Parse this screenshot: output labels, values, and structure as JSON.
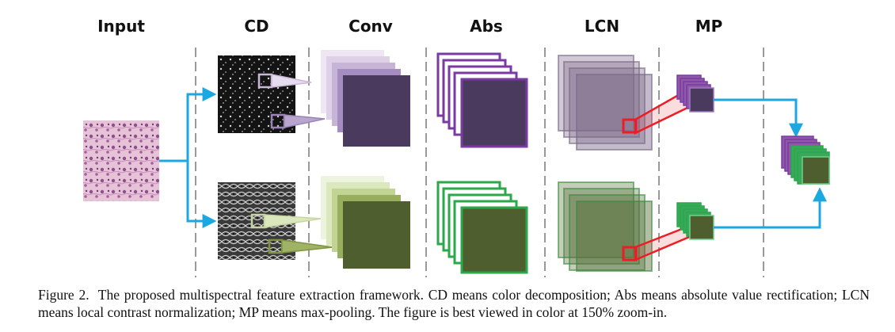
{
  "headers": {
    "input": "Input",
    "cd": "CD",
    "conv": "Conv",
    "abs": "Abs",
    "lcn": "LCN",
    "mp": "MP"
  },
  "colors": {
    "purple_dark": "#4a3a5e",
    "purple_frame": "#7a3aa3",
    "green_dark": "#4e5e2e",
    "green_frame": "#2aa84a",
    "arrow_blue": "#1aa8e0",
    "red_box": "#ee1c24",
    "divider": "#999999"
  },
  "caption": {
    "label": "Figure 2.",
    "text": "The proposed multispectral feature extraction framework. CD means color decomposition; Abs means absolute value rectification; LCN means local contrast normalization; MP means max-pooling. The figure is best viewed in color at 150% zoom-in."
  }
}
